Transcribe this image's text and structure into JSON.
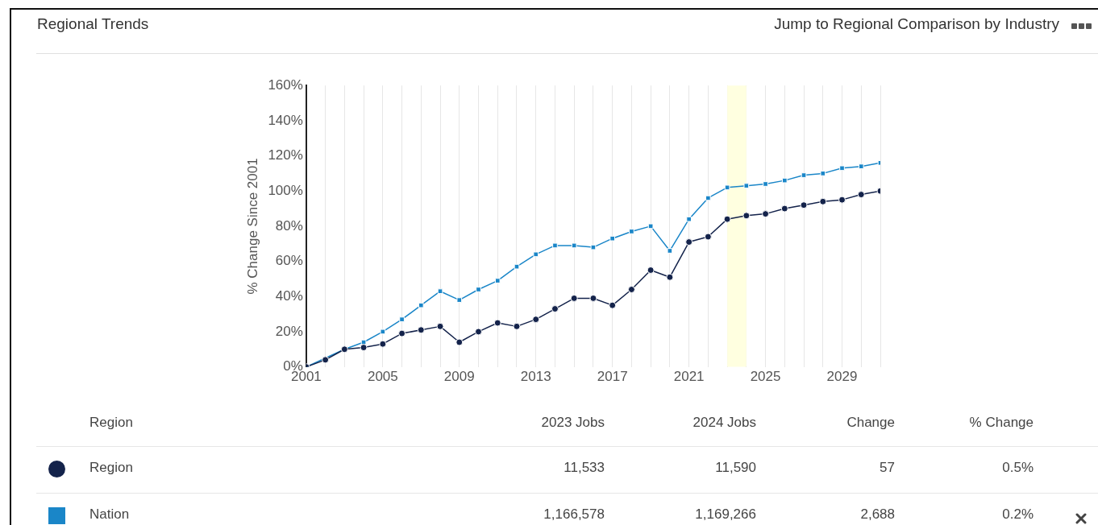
{
  "chart_data": {
    "type": "line",
    "title": "Regional Trends",
    "ylabel": "% Change Since 2001",
    "legend_title": "Region",
    "legend": "bottom",
    "grid": "x",
    "x": [
      2001,
      2002,
      2003,
      2004,
      2005,
      2006,
      2007,
      2008,
      2009,
      2010,
      2011,
      2012,
      2013,
      2014,
      2015,
      2016,
      2017,
      2018,
      2019,
      2020,
      2021,
      2022,
      2023,
      2024,
      2025,
      2026,
      2027,
      2028,
      2029,
      2030,
      2031
    ],
    "xlim": [
      2001,
      2031
    ],
    "xticks": [
      2001,
      {
        "value": 2002,
        "label": null
      },
      {
        "value": 2003,
        "label": null
      },
      {
        "value": 2004,
        "label": null
      },
      2005,
      {
        "value": 2006,
        "label": null
      },
      {
        "value": 2007,
        "label": null
      },
      {
        "value": 2008,
        "label": null
      },
      2009,
      {
        "value": 2010,
        "label": null
      },
      {
        "value": 2011,
        "label": null
      },
      {
        "value": 2012,
        "label": null
      },
      2013,
      {
        "value": 2014,
        "label": null
      },
      {
        "value": 2015,
        "label": null
      },
      {
        "value": 2016,
        "label": null
      },
      2017,
      {
        "value": 2018,
        "label": null
      },
      {
        "value": 2019,
        "label": null
      },
      {
        "value": 2020,
        "label": null
      },
      2021,
      {
        "value": 2022,
        "label": null
      },
      {
        "value": 2023,
        "label": null
      },
      {
        "value": 2024,
        "label": null
      },
      2025,
      {
        "value": 2026,
        "label": null
      },
      {
        "value": 2027,
        "label": null
      },
      {
        "value": 2028,
        "label": null
      },
      2029,
      {
        "value": 2030,
        "label": null
      },
      {
        "value": 2031,
        "label": null
      }
    ],
    "ylim": [
      0,
      160
    ],
    "yticks": [
      {
        "value": 0,
        "label": "0%"
      },
      {
        "value": 20,
        "label": "20%"
      },
      {
        "value": 40,
        "label": "40%"
      },
      {
        "value": 60,
        "label": "60%"
      },
      {
        "value": 80,
        "label": "80%"
      },
      {
        "value": 100,
        "label": "100%"
      },
      {
        "value": 120,
        "label": "120%"
      },
      {
        "value": 140,
        "label": "140%"
      },
      {
        "value": 160,
        "label": "160%"
      }
    ],
    "series": [
      {
        "name": "Region",
        "color": "#14234b",
        "marker": "circle",
        "values": [
          0,
          4,
          10,
          11,
          13,
          19,
          21,
          23,
          14,
          20,
          25,
          23,
          27,
          33,
          39,
          39,
          35,
          44,
          55,
          51,
          71,
          74,
          84,
          86,
          87,
          90,
          92,
          94,
          95,
          98,
          100
        ]
      },
      {
        "name": "Nation",
        "color": "#1a86c8",
        "marker": "square",
        "values": [
          0,
          null,
          10,
          14,
          20,
          27,
          35,
          43,
          38,
          44,
          49,
          57,
          64,
          69,
          69,
          68,
          73,
          77,
          80,
          66,
          84,
          96,
          102,
          103,
          104,
          106,
          109,
          110,
          113,
          114,
          116
        ]
      }
    ],
    "bands": [
      {
        "axis": "x",
        "from": 2023,
        "to": 2024,
        "color": "#ffffe0"
      }
    ],
    "annotations": [
      "Jump to Regional Comparison by Industry",
      "2023 Jobs",
      "2024 Jobs",
      "Change",
      "% Change",
      "11,533",
      "11,590",
      "57",
      "0.5%",
      "1,166,578",
      "1,169,266",
      "2,688",
      "0.2%"
    ]
  }
}
